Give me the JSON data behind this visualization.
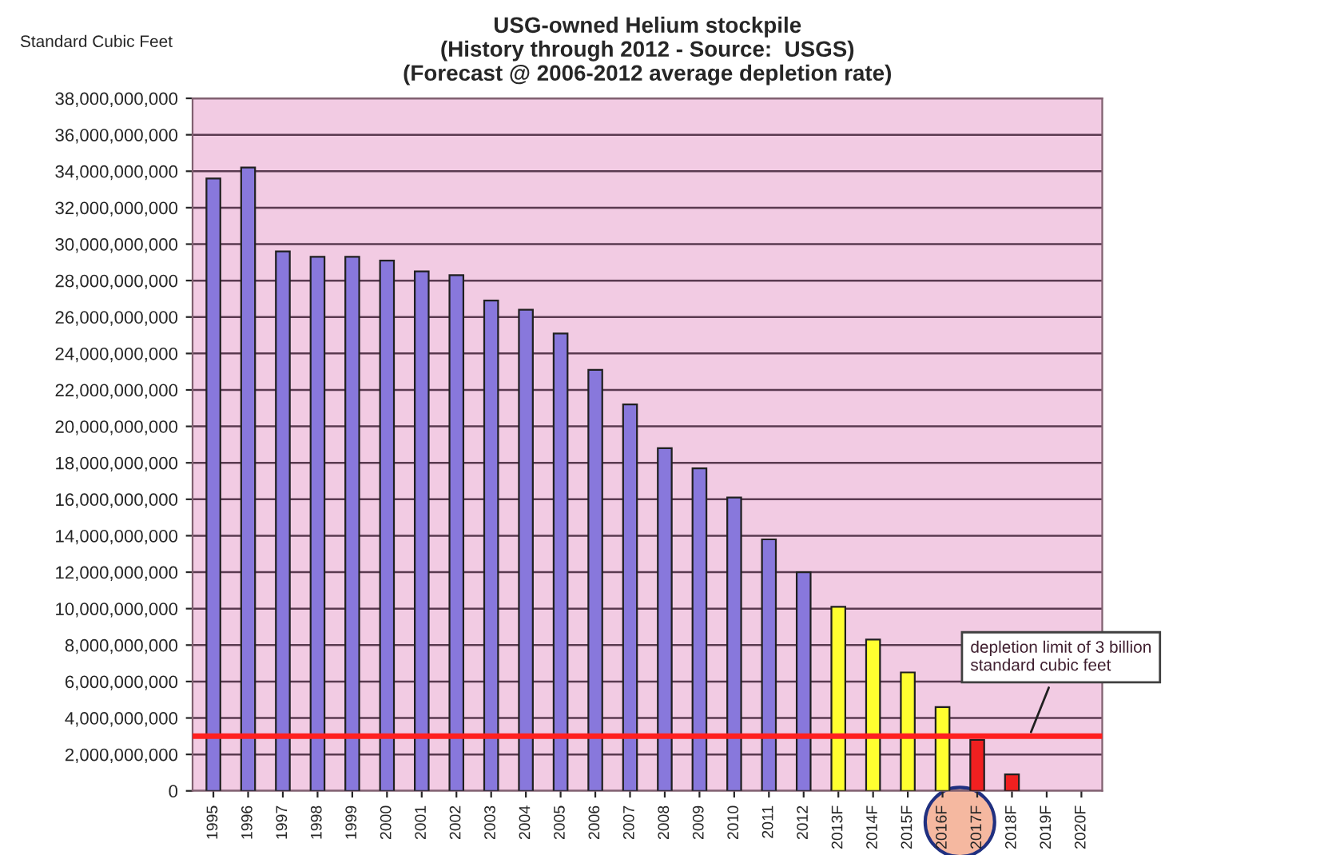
{
  "chart_data": {
    "type": "bar",
    "title": "USG-owned Helium stockpile\n(History through 2012 - Source:  USGS)\n(Forecast @ 2006-2012 average depletion rate)",
    "ylabel": "Standard Cubic Feet",
    "categories": [
      "1995",
      "1996",
      "1997",
      "1998",
      "1999",
      "2000",
      "2001",
      "2002",
      "2003",
      "2004",
      "2005",
      "2006",
      "2007",
      "2008",
      "2009",
      "2010",
      "2011",
      "2012",
      "2013F",
      "2014F",
      "2015F",
      "2016F",
      "2017F",
      "2018F",
      "2019F",
      "2020F"
    ],
    "values": [
      33600000000,
      34200000000,
      29600000000,
      29300000000,
      29300000000,
      29100000000,
      28500000000,
      28300000000,
      26900000000,
      26400000000,
      25100000000,
      23100000000,
      21200000000,
      18800000000,
      17700000000,
      16100000000,
      13800000000,
      12000000000,
      10100000000,
      8300000000,
      6500000000,
      4600000000,
      2800000000,
      900000000,
      null,
      null
    ],
    "colors": [
      "#8878dc",
      "#8878dc",
      "#8878dc",
      "#8878dc",
      "#8878dc",
      "#8878dc",
      "#8878dc",
      "#8878dc",
      "#8878dc",
      "#8878dc",
      "#8878dc",
      "#8878dc",
      "#8878dc",
      "#8878dc",
      "#8878dc",
      "#8878dc",
      "#8878dc",
      "#8878dc",
      "#ffff30",
      "#ffff30",
      "#ffff30",
      "#ffff30",
      "#f02020",
      "#f02020",
      "#f02020",
      "#f02020"
    ],
    "ylim": [
      0,
      38000000000
    ],
    "yticks": [
      0,
      {
        "value": 2000000000,
        "label": "2,000,000,000"
      },
      {
        "value": 4000000000,
        "label": "4,000,000,000"
      },
      {
        "value": 6000000000,
        "label": "6,000,000,000"
      },
      {
        "value": 8000000000,
        "label": "8,000,000,000"
      },
      {
        "value": 10000000000,
        "label": "10,000,000,000"
      },
      {
        "value": 12000000000,
        "label": "12,000,000,000"
      },
      {
        "value": 14000000000,
        "label": "14,000,000,000"
      },
      {
        "value": 16000000000,
        "label": "16,000,000,000"
      },
      {
        "value": 18000000000,
        "label": "18,000,000,000"
      },
      {
        "value": 20000000000,
        "label": "20,000,000,000"
      },
      {
        "value": 22000000000,
        "label": "22,000,000,000"
      },
      {
        "value": 24000000000,
        "label": "24,000,000,000"
      },
      {
        "value": 26000000000,
        "label": "26,000,000,000"
      },
      {
        "value": 28000000000,
        "label": "28,000,000,000"
      },
      {
        "value": 30000000000,
        "label": "30,000,000,000"
      },
      {
        "value": 32000000000,
        "label": "32,000,000,000"
      },
      {
        "value": 34000000000,
        "label": "34,000,000,000"
      },
      {
        "value": 36000000000,
        "label": "36,000,000,000"
      },
      {
        "value": 38000000000,
        "label": "38,000,000,000"
      }
    ],
    "ref_lines": [
      {
        "axis": "y",
        "value": 3000000000,
        "label": "depletion limit of 3 billion\nstandard cubic feet",
        "color": "#ff2020"
      }
    ],
    "grid": "y"
  }
}
